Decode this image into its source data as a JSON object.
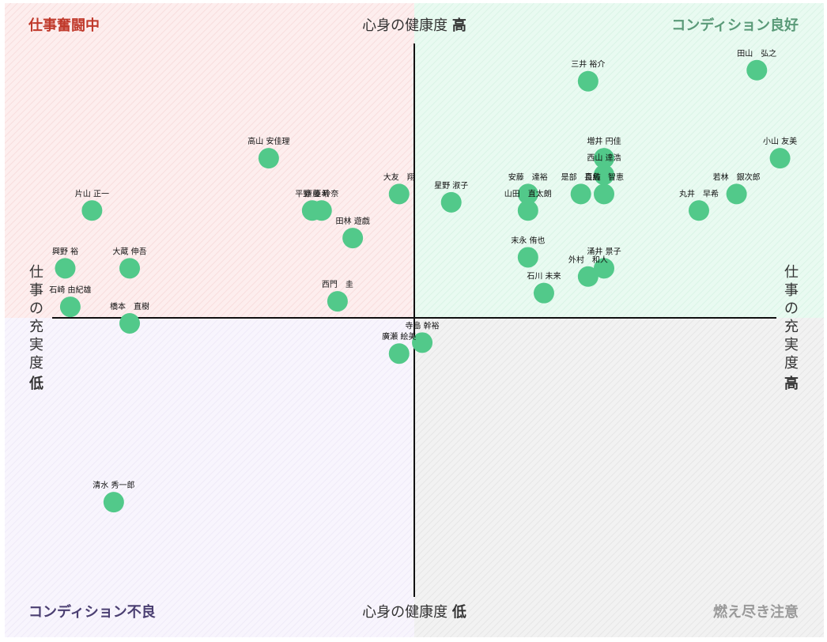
{
  "chart_data": {
    "type": "scatter",
    "quadrants": {
      "top_left": {
        "label": "仕事奮闘中",
        "color": "#c0392b"
      },
      "top_right": {
        "label": "コンディション良好",
        "color": "#5a9a78"
      },
      "bottom_left": {
        "label": "コンディション不良",
        "color": "#4b3f72"
      },
      "bottom_right": {
        "label": "燃え尽き注意",
        "color": "#9a9a9a"
      }
    },
    "y_axis": {
      "top_text": "心身の健康度",
      "top_strong": "高",
      "bottom_text": "心身の健康度",
      "bottom_strong": "低"
    },
    "x_axis": {
      "text": "仕事の充実度",
      "left_strong": "低",
      "right_strong": "高"
    },
    "point_color": "#52c98a",
    "xlim": [
      -50,
      50
    ],
    "ylim": [
      -50,
      50
    ],
    "points": [
      {
        "name": "三井 裕介",
        "x": 24.0,
        "y": 43.0
      },
      {
        "name": "田山　弘之",
        "x": 47.3,
        "y": 45.0
      },
      {
        "name": "小山 友美",
        "x": 50.5,
        "y": 29.0
      },
      {
        "name": "増井 円佳",
        "x": 26.2,
        "y": 29.0
      },
      {
        "name": "西山 達浩",
        "x": 26.2,
        "y": 26.0
      },
      {
        "name": "是部　直純",
        "x": 23.0,
        "y": 22.5
      },
      {
        "name": "長島　智恵",
        "x": 26.2,
        "y": 22.5
      },
      {
        "name": "安藤　達裕",
        "x": 15.7,
        "y": 22.5
      },
      {
        "name": "山田　直太朗",
        "x": 15.7,
        "y": 19.5
      },
      {
        "name": "若林　銀次郎",
        "x": 44.5,
        "y": 22.5
      },
      {
        "name": "丸井　早希",
        "x": 39.3,
        "y": 19.5
      },
      {
        "name": "星野 淑子",
        "x": 5.1,
        "y": 21.0
      },
      {
        "name": "大友　翔",
        "x": -2.1,
        "y": 22.5
      },
      {
        "name": "末永 侑也",
        "x": 15.7,
        "y": 11.0
      },
      {
        "name": "涌井 景子",
        "x": 26.2,
        "y": 9.0
      },
      {
        "name": "外村　和人",
        "x": 24.0,
        "y": 7.5
      },
      {
        "name": "石川 未来",
        "x": 17.9,
        "y": 4.5
      },
      {
        "name": "高山 安佳理",
        "x": -20.1,
        "y": 29.0
      },
      {
        "name": "平野 亜希",
        "x": -14.1,
        "y": 19.5
      },
      {
        "name": "齋藤 玲奈",
        "x": -12.8,
        "y": 19.5
      },
      {
        "name": "田林 遊戯",
        "x": -8.5,
        "y": 14.5
      },
      {
        "name": "西門　圭",
        "x": -10.6,
        "y": 3.0
      },
      {
        "name": "片山 正一",
        "x": -44.5,
        "y": 19.5
      },
      {
        "name": "興野 裕",
        "x": -48.2,
        "y": 9.0
      },
      {
        "name": "大蔵 伸吾",
        "x": -39.3,
        "y": 9.0
      },
      {
        "name": "石崎 由紀雄",
        "x": -47.5,
        "y": 2.0
      },
      {
        "name": "橋本　直樹",
        "x": -39.3,
        "y": -1.0
      },
      {
        "name": "寺島 幹裕",
        "x": 1.1,
        "y": -4.5
      },
      {
        "name": "廣瀬 絵美",
        "x": -2.1,
        "y": -6.5
      },
      {
        "name": "清水 秀一郎",
        "x": -41.5,
        "y": -33.5
      }
    ]
  }
}
